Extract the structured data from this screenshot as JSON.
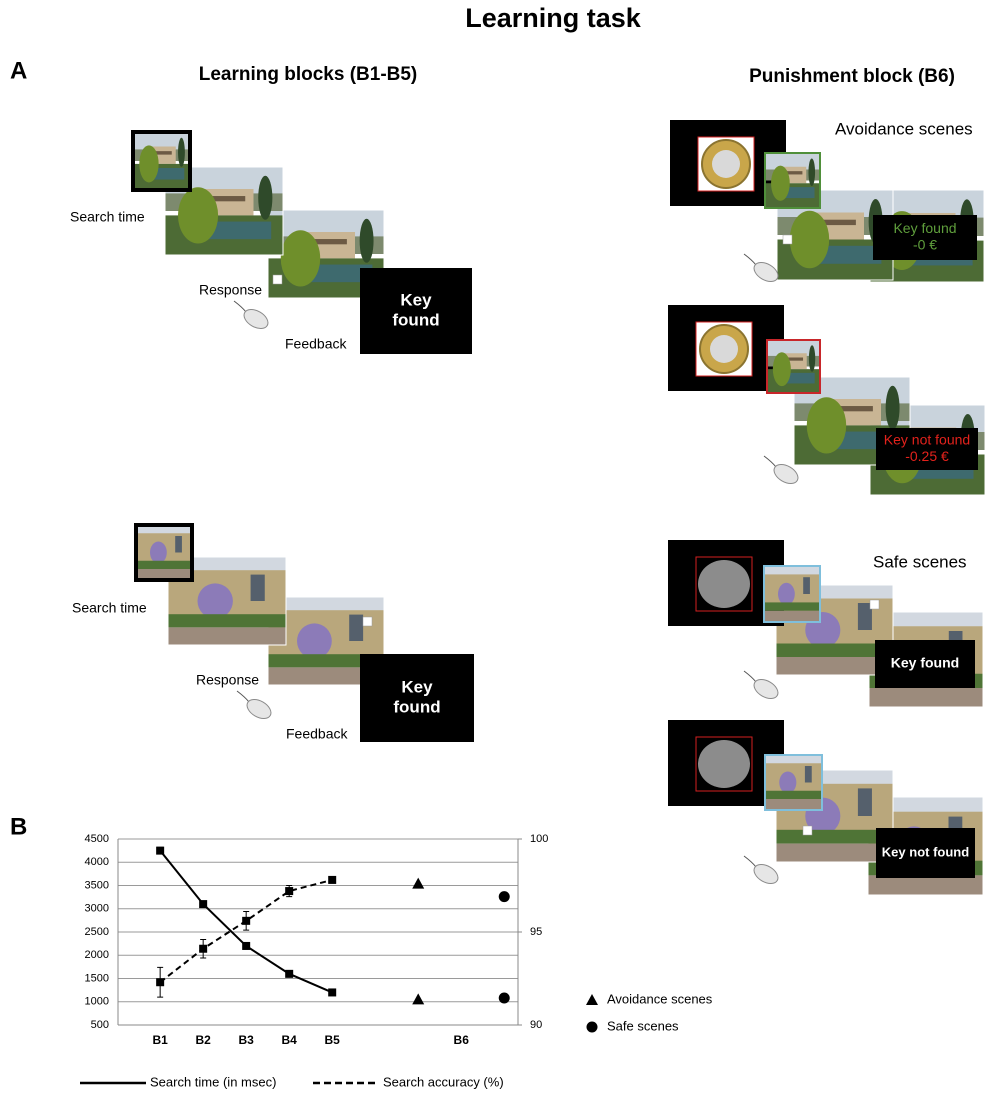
{
  "header": {
    "title": "Learning task"
  },
  "panel_a": {
    "label": "A",
    "learning": {
      "title": "Learning blocks (B1-B5)",
      "trials": [
        {
          "search": "Search time",
          "response": "Response",
          "feedback": "Feedback",
          "screen": [
            "Key",
            "found"
          ]
        },
        {
          "search": "Search time",
          "response": "Response",
          "feedback": "Feedback",
          "screen": [
            "Key",
            "found"
          ]
        }
      ]
    },
    "punishment": {
      "title": "Punishment block (B6)",
      "groups": [
        {
          "name": "Avoidance scenes",
          "trials": [
            {
              "screen": [
                "Key found",
                "-0 €"
              ],
              "color": "#5f9e3c"
            },
            {
              "screen": [
                "Key not found",
                "-0.25 €"
              ],
              "color": "#e3221c"
            }
          ]
        },
        {
          "name": "Safe scenes",
          "trials": [
            {
              "screen": [
                "Key found"
              ],
              "color": "#ffffff"
            },
            {
              "screen": [
                "Key not found"
              ],
              "color": "#ffffff"
            }
          ]
        }
      ]
    }
  },
  "panel_b": {
    "label": "B"
  },
  "chart_data": {
    "type": "line",
    "categories": [
      "B1",
      "B2",
      "B3",
      "B4",
      "B5",
      null,
      null,
      "B6",
      null
    ],
    "ylim": [
      500,
      4500
    ],
    "yticks": [
      500,
      1000,
      1500,
      2000,
      2500,
      3000,
      3500,
      4000,
      4500
    ],
    "y2lim": [
      90,
      100
    ],
    "y2ticks": [
      90,
      95,
      100
    ],
    "grid": true,
    "series": [
      {
        "name": "Search time (in msec)",
        "color": "#000000",
        "style": "solid",
        "marker": "square",
        "values": [
          4250,
          3100,
          2200,
          1600,
          1200,
          null,
          null,
          null,
          null
        ],
        "errors": [
          70,
          50,
          50,
          30,
          20,
          null,
          null,
          null,
          null
        ]
      },
      {
        "name": "Search accuracy (%)",
        "axis": "y2",
        "color": "#000000",
        "style": "dashed",
        "marker": "square",
        "values": [
          92.3,
          94.1,
          95.6,
          97.2,
          97.8,
          null,
          null,
          null,
          null
        ],
        "errors": [
          0.8,
          0.5,
          0.5,
          0.3,
          null,
          null,
          null,
          null,
          null
        ]
      },
      {
        "name": "Avoidance scenes",
        "color": "#000000",
        "marker": "triangle",
        "values": [
          null,
          null,
          null,
          null,
          null,
          null,
          1050,
          null,
          null
        ],
        "values_y2": [
          null,
          null,
          null,
          null,
          null,
          null,
          97.6,
          null,
          null
        ]
      },
      {
        "name": "Safe scenes",
        "color": "#000000",
        "marker": "circle",
        "values": [
          null,
          null,
          null,
          null,
          null,
          null,
          null,
          null,
          1080
        ],
        "values_y2": [
          null,
          null,
          null,
          null,
          null,
          null,
          null,
          null,
          96.9
        ]
      }
    ]
  }
}
